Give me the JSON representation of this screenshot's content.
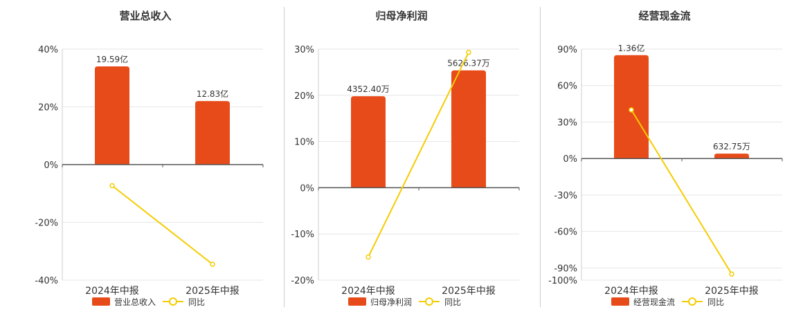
{
  "colors": {
    "bar": "#e84b1a",
    "line": "#f5cc00",
    "grid": "#e6e6e6",
    "axis": "#555555",
    "text": "#333333"
  },
  "legend": {
    "bar_icon": "bar-swatch-icon",
    "line_icon": "line-marker-icon"
  },
  "chart_data": [
    {
      "type": "bar",
      "title": "营业总收入",
      "categories": [
        "2024年中报",
        "2025年中报"
      ],
      "series": [
        {
          "name": "营业总收入",
          "type": "bar",
          "values": [
            34,
            22
          ],
          "labels": [
            "19.59亿",
            "12.83亿"
          ]
        },
        {
          "name": "同比",
          "type": "line",
          "values": [
            -7.3,
            -34.5
          ]
        }
      ],
      "ylim": [
        -40,
        40
      ],
      "yticks": [
        40,
        20,
        0,
        -20,
        -40
      ],
      "ytick_labels": [
        "40%",
        "20%",
        "0%",
        "-20%",
        "-40%"
      ],
      "grid": true,
      "legend": "bottom"
    },
    {
      "type": "bar",
      "title": "归母净利润",
      "categories": [
        "2024年中报",
        "2025年中报"
      ],
      "series": [
        {
          "name": "归母净利润",
          "type": "bar",
          "values": [
            19.8,
            25.4
          ],
          "labels": [
            "4352.40万",
            "5626.37万"
          ]
        },
        {
          "name": "同比",
          "type": "line",
          "values": [
            -15,
            29.3
          ]
        }
      ],
      "ylim": [
        -20,
        30
      ],
      "yticks": [
        30,
        20,
        10,
        0,
        -10,
        -20
      ],
      "ytick_labels": [
        "30%",
        "20%",
        "10%",
        "0%",
        "-10%",
        "-20%"
      ],
      "grid": true,
      "legend": "bottom"
    },
    {
      "type": "bar",
      "title": "经营现金流",
      "categories": [
        "2024年中报",
        "2025年中报"
      ],
      "series": [
        {
          "name": "经营现金流",
          "type": "bar",
          "values": [
            85,
            4
          ],
          "labels": [
            "1.36亿",
            "632.75万"
          ]
        },
        {
          "name": "同比",
          "type": "line",
          "values": [
            40,
            -95
          ]
        }
      ],
      "ylim": [
        -100,
        90
      ],
      "yticks": [
        90,
        60,
        30,
        0,
        -30,
        -60,
        -90,
        -100
      ],
      "ytick_labels": [
        "90%",
        "60%",
        "30%",
        "0%",
        "-30%",
        "-60%",
        "-90%",
        "-100%"
      ],
      "grid": true,
      "legend": "bottom"
    }
  ]
}
